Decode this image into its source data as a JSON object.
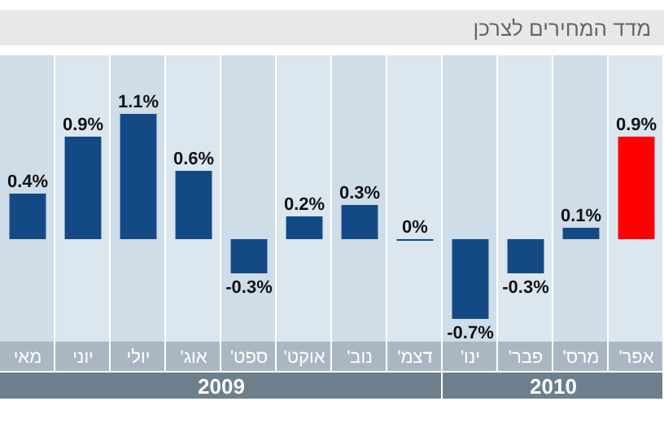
{
  "chart_data": {
    "type": "bar",
    "title": "מדד המחירים לצרכן",
    "categories": [
      "מאי",
      "יוני",
      "יולי",
      "אוג'",
      "ספט'",
      "אוקט'",
      "נוב'",
      "דצמ'",
      "ינו'",
      "פבר'",
      "מרס'",
      "אפר'"
    ],
    "values": [
      0.4,
      0.9,
      1.1,
      0.6,
      -0.3,
      0.2,
      0.3,
      0,
      -0.7,
      -0.3,
      0.1,
      0.9
    ],
    "colors": [
      "#134a85",
      "#134a85",
      "#134a85",
      "#134a85",
      "#134a85",
      "#134a85",
      "#134a85",
      "#134a85",
      "#134a85",
      "#134a85",
      "#134a85",
      "#ff0000"
    ],
    "value_labels": [
      "0.4%",
      "0.9%",
      "1.1%",
      "0.6%",
      "-0.3%",
      "0.2%",
      "0.3%",
      "0%",
      "-0.7%",
      "-0.3%",
      "0.1%",
      "0.9%"
    ],
    "annotations": [
      "2009",
      "2010"
    ]
  }
}
